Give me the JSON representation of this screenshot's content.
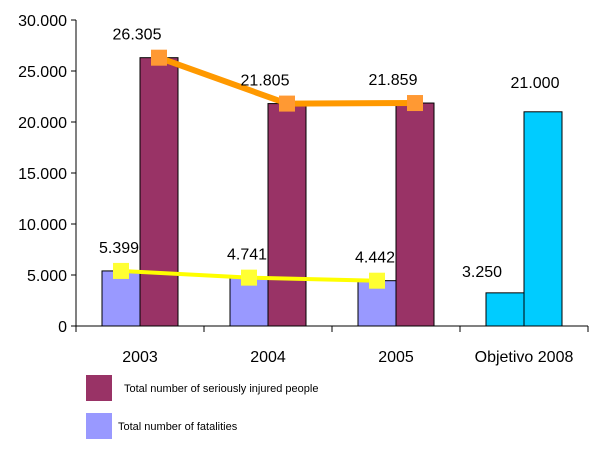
{
  "chart_data": {
    "type": "bar",
    "categories": [
      "2003",
      "2004",
      "2005",
      "Objetivo 2008"
    ],
    "ylim": [
      0,
      30000
    ],
    "yticks": [
      0,
      5000,
      10000,
      15000,
      20000,
      25000,
      30000
    ],
    "ytick_labels": [
      "0",
      "5.000",
      "10.000",
      "15.000",
      "20.000",
      "25.000",
      "30.000"
    ],
    "grid": false,
    "legend_position": "bottom-left",
    "series": [
      {
        "name": "Total number of fatalities",
        "values": [
          5399,
          4741,
          4442,
          3250
        ],
        "labels": [
          "5.399",
          "4.741",
          "4.442",
          "3.250"
        ],
        "color": "#9999ff",
        "target_color": "#00ccff"
      },
      {
        "name": "Total number of seriously injured people",
        "values": [
          26305,
          21805,
          21859,
          21000
        ],
        "labels": [
          "26.305",
          "21.805",
          "21.859",
          "21.000"
        ],
        "color": "#993366",
        "target_color": "#00ccff"
      }
    ],
    "trend_lines": [
      {
        "series": "Total number of seriously injured people",
        "values": [
          26305,
          21805,
          21859
        ],
        "line_color": "#ff9900",
        "marker_color": "#ff9933"
      },
      {
        "series": "Total number of fatalities",
        "values": [
          5399,
          4741,
          4442
        ],
        "line_color": "#ffff00",
        "marker_color": "#ffff33"
      }
    ],
    "legend": [
      {
        "label": "Total number of seriously injured people",
        "color": "#993366"
      },
      {
        "label": "Total number of fatalities",
        "color": "#9999ff"
      }
    ]
  }
}
